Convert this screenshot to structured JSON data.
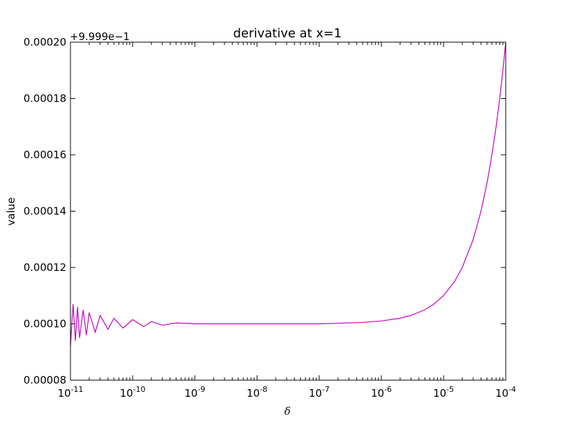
{
  "chart_data": {
    "type": "line",
    "title": "derivative at x=1",
    "xlabel": "δ",
    "ylabel": "value",
    "x_scale": "log",
    "xlim": [
      1e-11,
      0.0001
    ],
    "ylim": [
      8e-05,
      0.0002
    ],
    "y_offset_label": "+9.999e−1",
    "x_ticks": [
      {
        "value": 1e-11,
        "base": "10",
        "exp": "-11"
      },
      {
        "value": 1e-10,
        "base": "10",
        "exp": "-10"
      },
      {
        "value": 1e-09,
        "base": "10",
        "exp": "-9"
      },
      {
        "value": 1e-08,
        "base": "10",
        "exp": "-8"
      },
      {
        "value": 1e-07,
        "base": "10",
        "exp": "-7"
      },
      {
        "value": 1e-06,
        "base": "10",
        "exp": "-6"
      },
      {
        "value": 1e-05,
        "base": "10",
        "exp": "-5"
      },
      {
        "value": 0.0001,
        "base": "10",
        "exp": "-4"
      }
    ],
    "y_ticks": [
      {
        "value": 8e-05,
        "label": "0.00008"
      },
      {
        "value": 0.0001,
        "label": "0.00010"
      },
      {
        "value": 0.00012,
        "label": "0.00012"
      },
      {
        "value": 0.00014,
        "label": "0.00014"
      },
      {
        "value": 0.00016,
        "label": "0.00016"
      },
      {
        "value": 0.00018,
        "label": "0.00018"
      },
      {
        "value": 0.0002,
        "label": "0.00020"
      }
    ],
    "grid": false,
    "series": [
      {
        "color": "#bf00bf",
        "x": [
          1e-11,
          1.1e-11,
          1.2e-11,
          1.3e-11,
          1.4e-11,
          1.6e-11,
          1.8e-11,
          2e-11,
          2.5e-11,
          3e-11,
          4e-11,
          5e-11,
          7e-11,
          1e-10,
          1.5e-10,
          2e-10,
          3e-10,
          5e-10,
          1e-09,
          1e-08,
          1e-07,
          2e-07,
          5e-07,
          1e-06,
          2e-06,
          3e-06,
          5e-06,
          7e-06,
          1e-05,
          1.5e-05,
          2e-05,
          3e-05,
          4e-05,
          5e-05,
          6e-05,
          7e-05,
          8e-05,
          9e-05,
          0.0001
        ],
        "y": [
          9.2e-05,
          0.000107,
          9.4e-05,
          0.000106,
          9.5e-05,
          0.000105,
          9.6e-05,
          0.000104,
          9.7e-05,
          0.000103,
          9.8e-05,
          0.000102,
          9.85e-05,
          0.0001015,
          9.9e-05,
          0.0001008,
          9.95e-05,
          0.0001003,
          0.0001,
          0.0001,
          0.0001,
          0.0001002,
          0.0001005,
          0.000101,
          0.000102,
          0.000103,
          0.000105,
          0.000107,
          0.00011,
          0.000115,
          0.00012,
          0.00013,
          0.00014,
          0.00015,
          0.00016,
          0.00017,
          0.00018,
          0.00019,
          0.0002
        ]
      }
    ]
  }
}
